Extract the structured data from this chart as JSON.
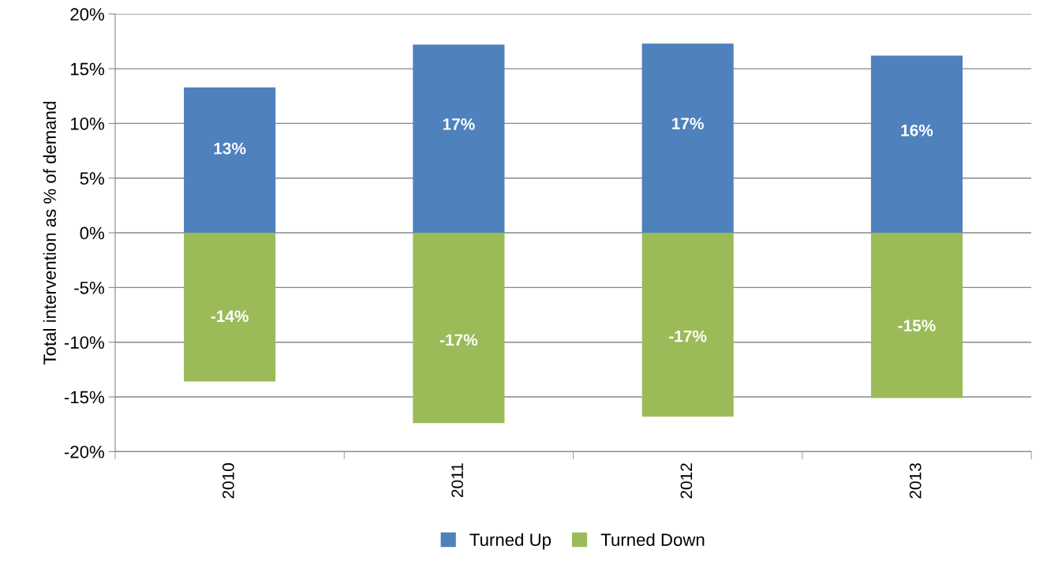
{
  "chart_data": {
    "type": "bar",
    "stacked": true,
    "ylabel": "Total intervention as % of demand",
    "categories": [
      "2010",
      "2011",
      "2012",
      "2013"
    ],
    "series": [
      {
        "name": "Turned Up",
        "color": "#4f81bd",
        "values": [
          13.3,
          17.2,
          17.3,
          16.2
        ],
        "value_labels": [
          "13%",
          "17%",
          "17%",
          "16%"
        ]
      },
      {
        "name": "Turned Down",
        "color": "#9bbb59",
        "values": [
          -13.6,
          -17.4,
          -16.8,
          -15.1
        ],
        "value_labels": [
          "-14%",
          "-17%",
          "-17%",
          "-15%"
        ]
      }
    ],
    "ylim": [
      -20,
      20
    ],
    "yticks": [
      {
        "value": -20,
        "label": "-20%"
      },
      {
        "value": -15,
        "label": "-15%"
      },
      {
        "value": -10,
        "label": "-10%"
      },
      {
        "value": -5,
        "label": "-5%"
      },
      {
        "value": 0,
        "label": "0%"
      },
      {
        "value": 5,
        "label": "5%"
      },
      {
        "value": 10,
        "label": "10%"
      },
      {
        "value": 15,
        "label": "15%"
      },
      {
        "value": 20,
        "label": "20%"
      }
    ],
    "grid": "y",
    "legend": "bottom"
  }
}
